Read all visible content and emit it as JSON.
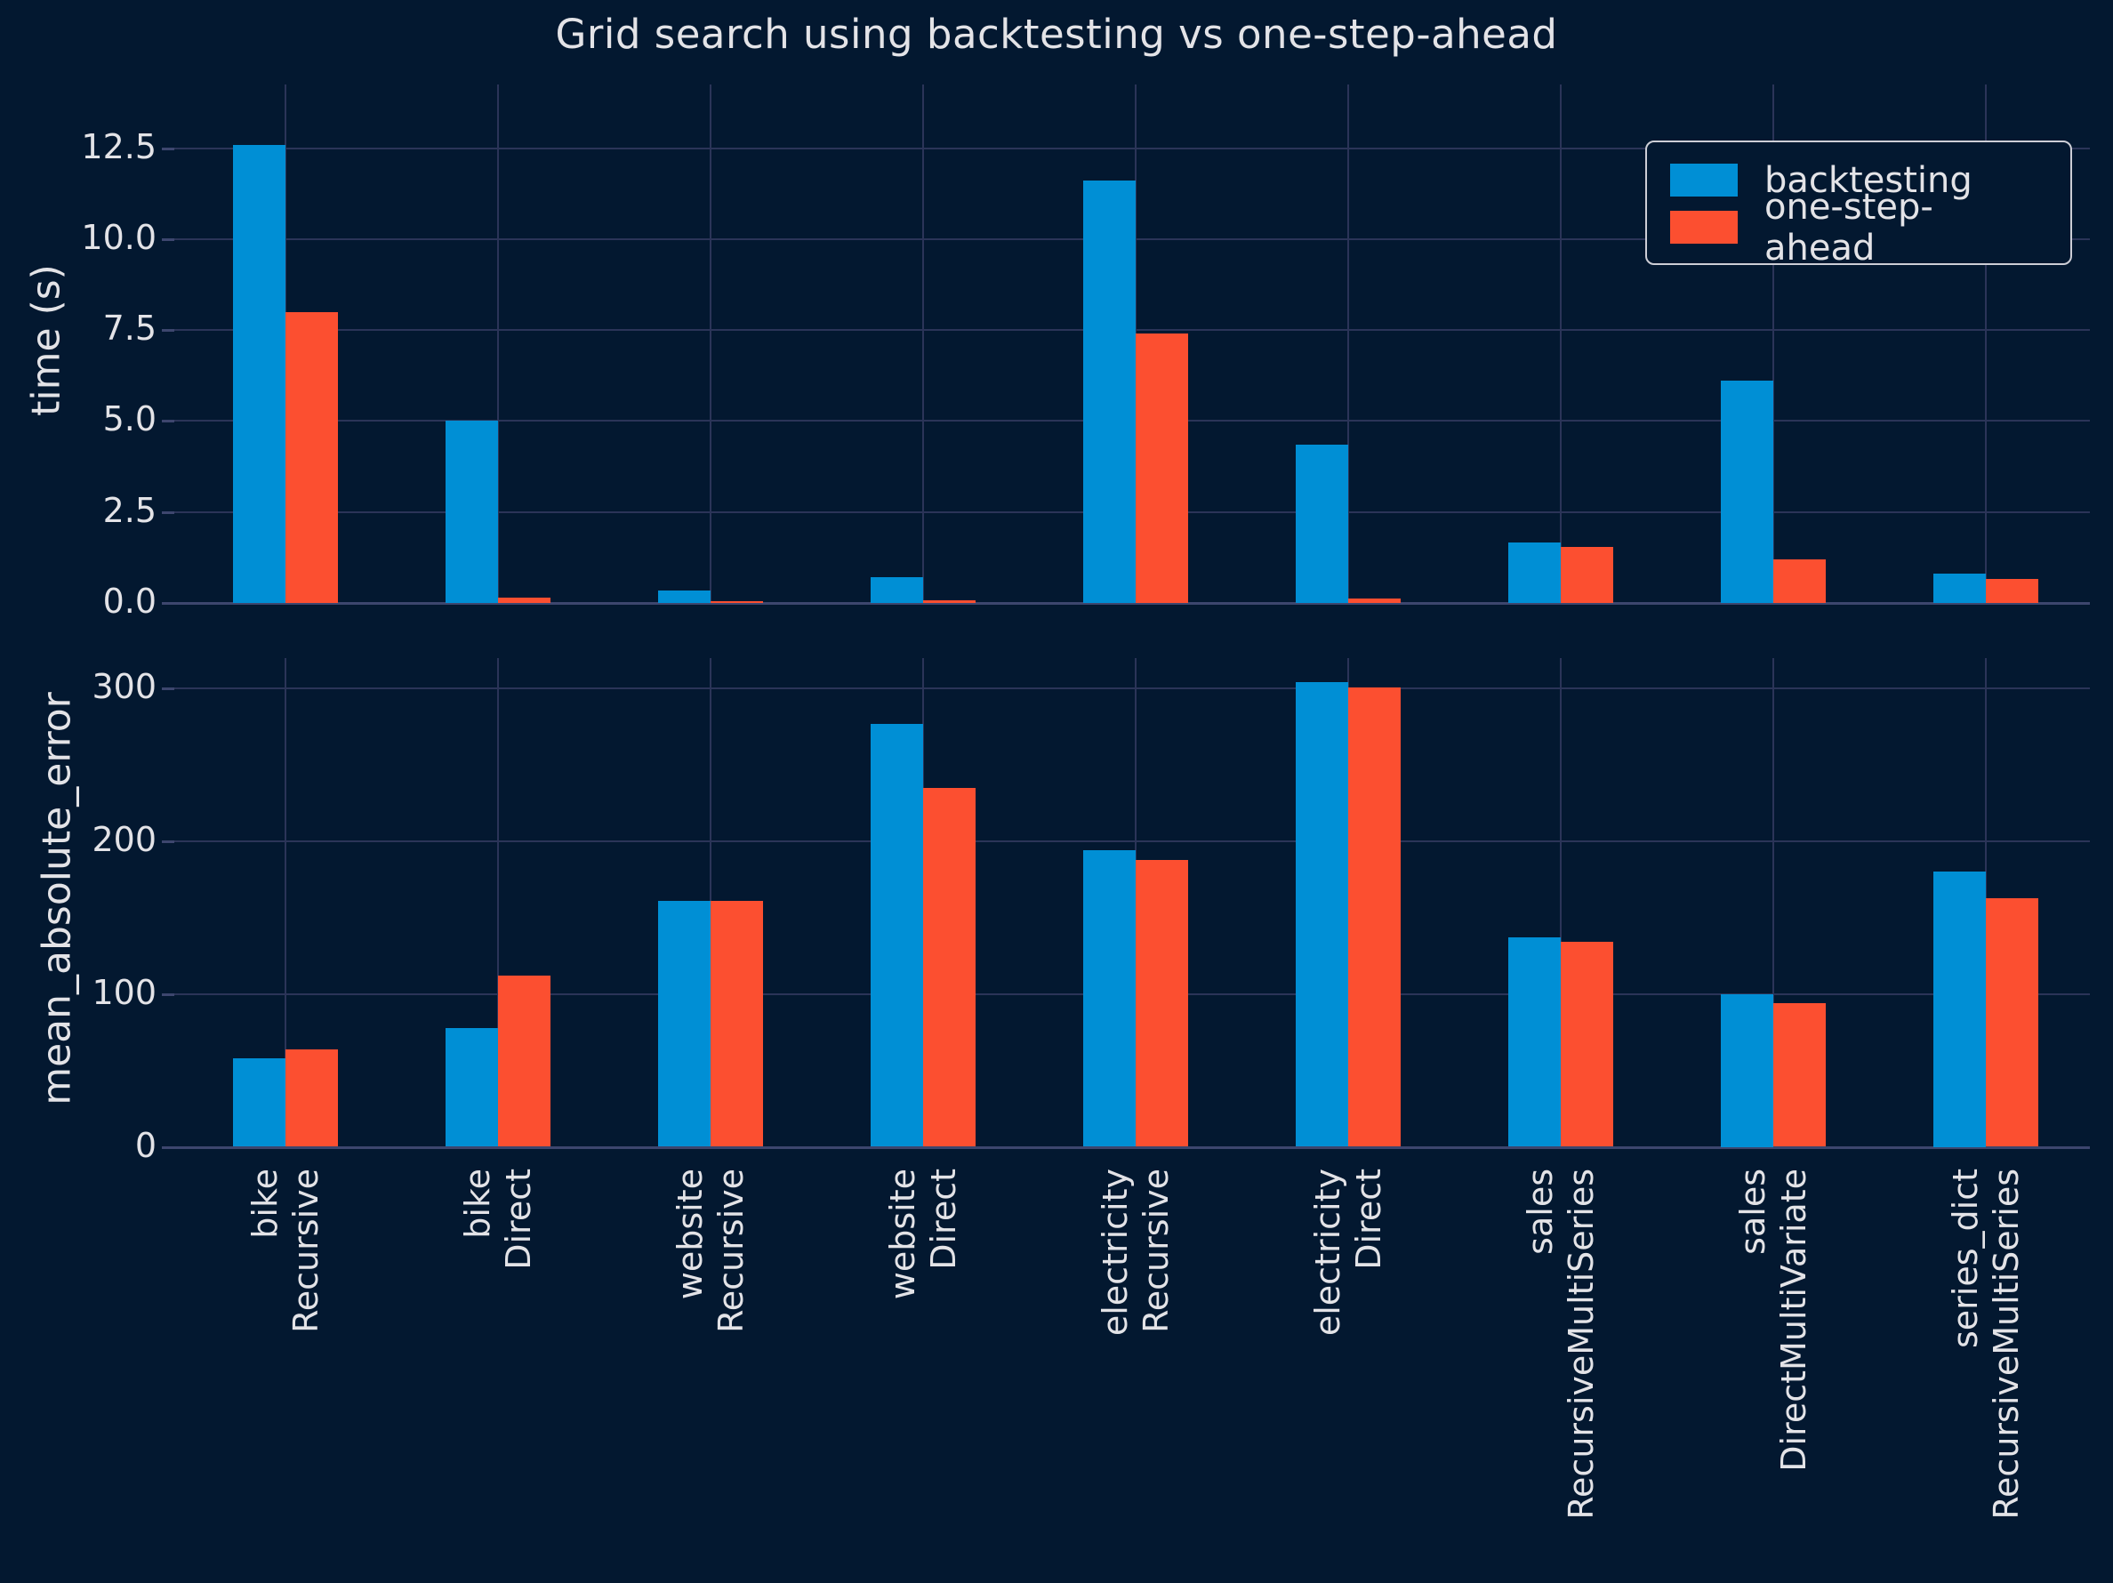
{
  "figure": {
    "title": "Grid search using backtesting vs one-step-ahead",
    "background_color": "#031830",
    "grid_color": "#2b3458",
    "text_color": "#e3e3e7"
  },
  "legend": {
    "position": "upper right",
    "items": [
      {
        "label": "backtesting",
        "color": "#008fd5"
      },
      {
        "label": "one-step-ahead",
        "color": "#fc4f30"
      }
    ]
  },
  "chart_data": [
    {
      "type": "bar",
      "title": "Grid search using backtesting vs one-step-ahead",
      "xlabel": "",
      "ylabel": "time (s)",
      "grid": true,
      "ylim": [
        0,
        14.25
      ],
      "yticks": [
        {
          "value": 0,
          "label": "0.0"
        },
        {
          "value": 2.5,
          "label": "2.5"
        },
        {
          "value": 5,
          "label": "5.0"
        },
        {
          "value": 7.5,
          "label": "7.5"
        },
        {
          "value": 10,
          "label": "10.0"
        },
        {
          "value": 12.5,
          "label": "12.5"
        }
      ],
      "categories": [
        [
          "bike",
          "Recursive"
        ],
        [
          "bike",
          "Direct"
        ],
        [
          "website",
          "Recursive"
        ],
        [
          "website",
          "Direct"
        ],
        [
          "electricity",
          "Recursive"
        ],
        [
          "electricity",
          "Direct"
        ],
        [
          "sales",
          "RecursiveMultiSeries"
        ],
        [
          "sales",
          "DirectMultiVariate"
        ],
        [
          "series_dict",
          "RecursiveMultiSeries"
        ]
      ],
      "x_tick_labels_visible": false,
      "series": [
        {
          "name": "backtesting",
          "color": "#008fd5",
          "values": [
            12.6,
            5.0,
            0.35,
            0.7,
            11.6,
            4.35,
            1.65,
            6.1,
            0.8
          ]
        },
        {
          "name": "one-step-ahead",
          "color": "#fc4f30",
          "values": [
            8.0,
            0.15,
            0.06,
            0.08,
            7.4,
            0.12,
            1.55,
            1.2,
            0.65
          ]
        }
      ]
    },
    {
      "type": "bar",
      "title": "",
      "xlabel": "",
      "ylabel": "mean_absolute_error",
      "grid": true,
      "ylim": [
        0,
        320
      ],
      "yticks": [
        {
          "value": 0,
          "label": "0"
        },
        {
          "value": 100,
          "label": "100"
        },
        {
          "value": 200,
          "label": "200"
        },
        {
          "value": 300,
          "label": "300"
        }
      ],
      "categories": [
        [
          "bike",
          "Recursive"
        ],
        [
          "bike",
          "Direct"
        ],
        [
          "website",
          "Recursive"
        ],
        [
          "website",
          "Direct"
        ],
        [
          "electricity",
          "Recursive"
        ],
        [
          "electricity",
          "Direct"
        ],
        [
          "sales",
          "RecursiveMultiSeries"
        ],
        [
          "sales",
          "DirectMultiVariate"
        ],
        [
          "series_dict",
          "RecursiveMultiSeries"
        ]
      ],
      "x_tick_labels_visible": true,
      "series": [
        {
          "name": "backtesting",
          "color": "#008fd5",
          "values": [
            58,
            78,
            161,
            277,
            194,
            304,
            137,
            100,
            180
          ]
        },
        {
          "name": "one-step-ahead",
          "color": "#fc4f30",
          "values": [
            64,
            112,
            161,
            235,
            188,
            301,
            134,
            94,
            163
          ]
        }
      ]
    }
  ]
}
